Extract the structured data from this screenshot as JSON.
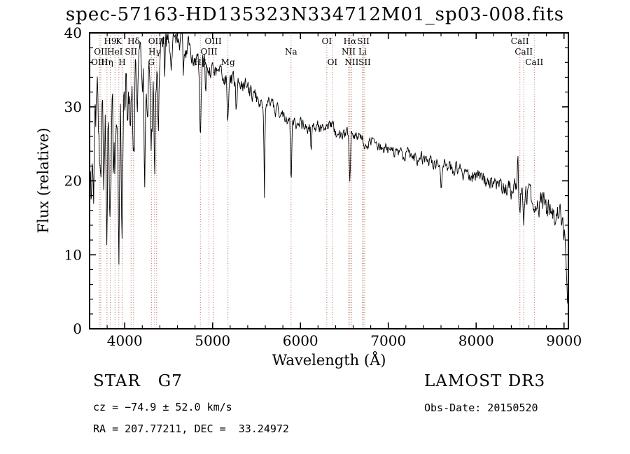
{
  "title": "spec-57163-HD135323N334712M01_sp03-008.fits",
  "chart_data": {
    "type": "line",
    "title": "spec-57163-HD135323N334712M01_sp03-008.fits",
    "xlabel": "Wavelength (Å)",
    "ylabel": "Flux (relative)",
    "xlim": [
      3600,
      9050
    ],
    "ylim": [
      0,
      40
    ],
    "xticks": [
      4000,
      5000,
      6000,
      7000,
      8000,
      9000
    ],
    "yticks": [
      0,
      10,
      20,
      30,
      40
    ],
    "x_minor_step": 200,
    "y_minor_step": 2,
    "grid": false,
    "legend": false,
    "series_color": "#000000",
    "marker_line_color": "#a04a38",
    "marker_label_color": "#7a2b1b",
    "sample_step_angstrom": 6,
    "continuum_points": [
      [
        3610,
        16
      ],
      [
        3660,
        24
      ],
      [
        3720,
        28
      ],
      [
        3780,
        29.5
      ],
      [
        3840,
        30.5
      ],
      [
        3900,
        31
      ],
      [
        3960,
        31.5
      ],
      [
        4020,
        33
      ],
      [
        4080,
        33.5
      ],
      [
        4160,
        34.5
      ],
      [
        4240,
        33.5
      ],
      [
        4310,
        34
      ],
      [
        4380,
        36
      ],
      [
        4450,
        38
      ],
      [
        4520,
        39.2
      ],
      [
        4600,
        39
      ],
      [
        4680,
        38.2
      ],
      [
        4760,
        37.2
      ],
      [
        4840,
        36.5
      ],
      [
        4920,
        35.8
      ],
      [
        5000,
        35.2
      ],
      [
        5080,
        34.5
      ],
      [
        5160,
        34
      ],
      [
        5240,
        33.4
      ],
      [
        5320,
        33
      ],
      [
        5400,
        32.2
      ],
      [
        5480,
        31.4
      ],
      [
        5560,
        30.8
      ],
      [
        5640,
        30.2
      ],
      [
        5720,
        29.6
      ],
      [
        5800,
        29.2
      ],
      [
        5880,
        28.4
      ],
      [
        5960,
        27.8
      ],
      [
        6040,
        27.4
      ],
      [
        6120,
        27.2
      ],
      [
        6200,
        27.2
      ],
      [
        6280,
        26.9
      ],
      [
        6360,
        27.2
      ],
      [
        6440,
        26.3
      ],
      [
        6520,
        26.1
      ],
      [
        6600,
        26.1
      ],
      [
        6680,
        25.7
      ],
      [
        6760,
        25.2
      ],
      [
        6840,
        25.1
      ],
      [
        6920,
        24.5
      ],
      [
        7000,
        24.2
      ],
      [
        7100,
        23.8
      ],
      [
        7200,
        23.6
      ],
      [
        7300,
        23.2
      ],
      [
        7400,
        22.9
      ],
      [
        7500,
        22.5
      ],
      [
        7600,
        22.1
      ],
      [
        7700,
        21.8
      ],
      [
        7800,
        21.4
      ],
      [
        7900,
        21.0
      ],
      [
        8000,
        20.5
      ],
      [
        8100,
        20.1
      ],
      [
        8200,
        19.6
      ],
      [
        8300,
        19.2
      ],
      [
        8400,
        18.9
      ],
      [
        8500,
        18.6
      ],
      [
        8600,
        17.8
      ],
      [
        8700,
        17.1
      ],
      [
        8800,
        16.3
      ],
      [
        8900,
        15.6
      ],
      [
        8960,
        14.8
      ],
      [
        9010,
        13.5
      ],
      [
        9030,
        9
      ],
      [
        9045,
        2.5
      ]
    ],
    "noise_amplitude_points": [
      [
        3610,
        5.5
      ],
      [
        3700,
        5
      ],
      [
        3800,
        4.5
      ],
      [
        3900,
        4.2
      ],
      [
        4000,
        3.6
      ],
      [
        4150,
        3
      ],
      [
        4300,
        2.2
      ],
      [
        4450,
        1.6
      ],
      [
        4600,
        1.4
      ],
      [
        4800,
        1.2
      ],
      [
        5000,
        1.1
      ],
      [
        5300,
        1.0
      ],
      [
        5600,
        0.9
      ],
      [
        6000,
        0.85
      ],
      [
        6500,
        0.75
      ],
      [
        7000,
        0.7
      ],
      [
        7500,
        0.75
      ],
      [
        8000,
        0.9
      ],
      [
        8400,
        1.1
      ],
      [
        8700,
        1.4
      ],
      [
        8950,
        1.8
      ],
      [
        9045,
        1.5
      ]
    ],
    "absorption_features": [
      {
        "wavelength": 3727,
        "depth": 12,
        "sigma": 9
      },
      {
        "wavelength": 3760,
        "depth": 7,
        "sigma": 6
      },
      {
        "wavelength": 3798,
        "depth": 13,
        "sigma": 8
      },
      {
        "wavelength": 3835,
        "depth": 15,
        "sigma": 8
      },
      {
        "wavelength": 3870,
        "depth": 8,
        "sigma": 6
      },
      {
        "wavelength": 3889,
        "depth": 13,
        "sigma": 8
      },
      {
        "wavelength": 3933,
        "depth": 19,
        "sigma": 9
      },
      {
        "wavelength": 3970,
        "depth": 15,
        "sigma": 9
      },
      {
        "wavelength": 4026,
        "depth": 7,
        "sigma": 6
      },
      {
        "wavelength": 4068,
        "depth": 7,
        "sigma": 6
      },
      {
        "wavelength": 4101,
        "depth": 13,
        "sigma": 9
      },
      {
        "wavelength": 4144,
        "depth": 6,
        "sigma": 5
      },
      {
        "wavelength": 4226,
        "depth": 12,
        "sigma": 6
      },
      {
        "wavelength": 4260,
        "depth": 6,
        "sigma": 5
      },
      {
        "wavelength": 4304,
        "depth": 8,
        "sigma": 10
      },
      {
        "wavelength": 4340,
        "depth": 13,
        "sigma": 8
      },
      {
        "wavelength": 4383,
        "depth": 8,
        "sigma": 6
      },
      {
        "wavelength": 4455,
        "depth": 5,
        "sigma": 5
      },
      {
        "wavelength": 4531,
        "depth": 4,
        "sigma": 5
      },
      {
        "wavelength": 4668,
        "depth": 4,
        "sigma": 5
      },
      {
        "wavelength": 4861,
        "depth": 8.5,
        "sigma": 8
      },
      {
        "wavelength": 4920,
        "depth": 4,
        "sigma": 5
      },
      {
        "wavelength": 5175,
        "depth": 5.5,
        "sigma": 9
      },
      {
        "wavelength": 5270,
        "depth": 4,
        "sigma": 7
      },
      {
        "wavelength": 5590,
        "depth": 13,
        "sigma": 5
      },
      {
        "wavelength": 5893,
        "depth": 8.5,
        "sigma": 7
      },
      {
        "wavelength": 6122,
        "depth": 3,
        "sigma": 5
      },
      {
        "wavelength": 6563,
        "depth": 6.5,
        "sigma": 7
      },
      {
        "wavelength": 7605,
        "depth": 2.5,
        "sigma": 8
      },
      {
        "wavelength": 8498,
        "depth": 3,
        "sigma": 5
      },
      {
        "wavelength": 8542,
        "depth": 3.5,
        "sigma": 5
      },
      {
        "wavelength": 8662,
        "depth": 3,
        "sigma": 5
      }
    ],
    "emission_features": [
      {
        "wavelength": 8475,
        "height": 5.5,
        "sigma": 5
      }
    ],
    "spectral_line_markers": [
      {
        "wavelength": 3835,
        "label": "H9",
        "row": 0
      },
      {
        "wavelength": 3933,
        "label": "K",
        "row": 0
      },
      {
        "wavelength": 4101,
        "label": "Hδ",
        "row": 0
      },
      {
        "wavelength": 4363,
        "label": "OIII",
        "row": 0
      },
      {
        "wavelength": 5007,
        "label": "OIII",
        "row": 0
      },
      {
        "wavelength": 6300,
        "label": "OI",
        "row": 0
      },
      {
        "wavelength": 6563,
        "label": "Hα",
        "row": 0
      },
      {
        "wavelength": 6716,
        "label": "SII",
        "row": 0
      },
      {
        "wavelength": 8498,
        "label": "CaII",
        "row": 0
      },
      {
        "wavelength": 3727,
        "label": "OII",
        "row": 1
      },
      {
        "wavelength": 3889,
        "label": "HeI",
        "row": 1
      },
      {
        "wavelength": 4072,
        "label": "SII",
        "row": 1
      },
      {
        "wavelength": 4340,
        "label": "Hγ",
        "row": 1
      },
      {
        "wavelength": 4959,
        "label": "OIII",
        "row": 1
      },
      {
        "wavelength": 5893,
        "label": "Na",
        "row": 1
      },
      {
        "wavelength": 6548,
        "label": "NII",
        "row": 1
      },
      {
        "wavelength": 6707,
        "label": "Li",
        "row": 1
      },
      {
        "wavelength": 8542,
        "label": "CaII",
        "row": 1
      },
      {
        "wavelength": 3712,
        "label": "OIII",
        "row": 2
      },
      {
        "wavelength": 3798,
        "label": "Hη",
        "row": 2
      },
      {
        "wavelength": 3970,
        "label": "H",
        "row": 2
      },
      {
        "wavelength": 4304,
        "label": "G",
        "row": 2
      },
      {
        "wavelength": 4861,
        "label": "Hβ",
        "row": 2
      },
      {
        "wavelength": 5175,
        "label": "Mg",
        "row": 2
      },
      {
        "wavelength": 6364,
        "label": "OI",
        "row": 2
      },
      {
        "wavelength": 6583,
        "label": "NII",
        "row": 2
      },
      {
        "wavelength": 6731,
        "label": "SII",
        "row": 2
      },
      {
        "wavelength": 8662,
        "label": "CaII",
        "row": 2
      }
    ]
  },
  "annotations": {
    "class_line": "STAR   G7",
    "survey_line": "LAMOST DR3",
    "cz_line": "cz = −74.9 ± 52.0 km/s",
    "obsdate_line": "Obs-Date: 20150520",
    "radec_line": "RA = 207.77211, DEC =  33.24972"
  }
}
